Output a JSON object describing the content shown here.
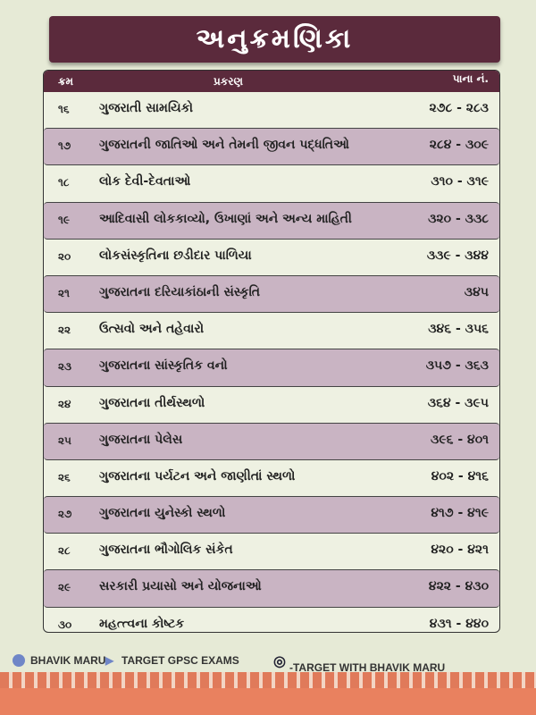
{
  "title": "અનુક્રમણિકા",
  "headers": {
    "no": "ક્રમ",
    "topic": "પ્રકરણ",
    "pages": "પાના નં."
  },
  "rows": [
    {
      "no": "૧૬",
      "topic": "ગુજરાતી સામયિકો",
      "pages": "૨૭૮ - ૨૮૩"
    },
    {
      "no": "૧૭",
      "topic": "ગુજરાતની જાતિઓ અને તેમની જીવન પદ્ધતિઓ",
      "pages": "૨૮૪ - ૩૦૯"
    },
    {
      "no": "૧૮",
      "topic": "લોક દેવી-દેવતાઓ",
      "pages": "૩૧૦ - ૩૧૯"
    },
    {
      "no": "૧૯",
      "topic": "આદિવાસી લોકકાવ્યો, ઉખાણાં અને અન્ય માહિતી",
      "pages": "૩૨૦ - ૩૩૮"
    },
    {
      "no": "૨૦",
      "topic": "લોકસંસ્કૃતિના છડીદાર પાળિયા",
      "pages": "૩૩૯ - ૩૪૪"
    },
    {
      "no": "૨૧",
      "topic": "ગુજરાતના દરિયાકાંઠાની સંસ્કૃતિ",
      "pages": "૩૪૫"
    },
    {
      "no": "૨૨",
      "topic": "ઉત્સવો અને તહેવારો",
      "pages": "૩૪૬ - ૩૫૬"
    },
    {
      "no": "૨૩",
      "topic": "ગુજરાતના સાંસ્કૃતિક વનો",
      "pages": "૩૫૭ - ૩૬૩"
    },
    {
      "no": "૨૪",
      "topic": "ગુજરાતના તીર્થસ્થળો",
      "pages": "૩૬૪ - ૩૯૫"
    },
    {
      "no": "૨૫",
      "topic": "ગુજરાતના પેલેસ",
      "pages": "૩૯૬ - ૪૦૧"
    },
    {
      "no": "૨૬",
      "topic": "ગુજરાતના પર્યટન અને જાણીતાં સ્થળો",
      "pages": "૪૦૨ - ૪૧૬"
    },
    {
      "no": "૨૭",
      "topic": "ગુજરાતના યુનેસ્કો સ્થળો",
      "pages": "૪૧૭ - ૪૧૯"
    },
    {
      "no": "૨૮",
      "topic": "ગુજરાતના ભૌગોલિક સંકેત",
      "pages": "૪૨૦ - ૪૨૧"
    },
    {
      "no": "૨૯",
      "topic": "સરકારી પ્રયાસો અને યોજનાઓ",
      "pages": "૪૨૨ - ૪૩૦"
    },
    {
      "no": "૩૦",
      "topic": "મહત્ત્વના કોષ્ટક",
      "pages": "૪૩૧ - ૪૪૦"
    }
  ],
  "footer": {
    "telegram": "BHAVIK MARU",
    "youtube": "TARGET GPSC EXAMS",
    "threads": "-TARGET WITH BHAVIK MARU"
  },
  "colors": {
    "maroon": "#5b2a3c",
    "mauve": "#c9b4c3",
    "page": "#e6ead6"
  }
}
